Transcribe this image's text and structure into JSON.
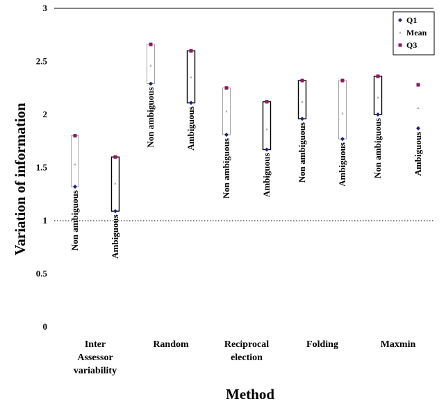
{
  "chart_data": {
    "type": "box",
    "xlabel": "Method",
    "ylabel": "Variation of information",
    "ylim": [
      0,
      3
    ],
    "yticks": [
      "0",
      "0.5",
      "1",
      "1.5",
      "2",
      "2.5",
      "3"
    ],
    "reference_line": 1,
    "groups": [
      {
        "label_lines": [
          "Inter",
          "Assessor",
          "variability"
        ]
      },
      {
        "label_lines": [
          "Random"
        ]
      },
      {
        "label_lines": [
          "Reciprocal",
          "election"
        ]
      },
      {
        "label_lines": [
          "Folding"
        ]
      },
      {
        "label_lines": [
          "Maxmin"
        ]
      }
    ],
    "legend": [
      {
        "name": "Q1",
        "color": "#1f1f7a",
        "marker": "diamond"
      },
      {
        "name": "Mean",
        "color": "#b0a0a0",
        "marker": "triangle"
      },
      {
        "name": "Q3",
        "color": "#8b1a5c",
        "marker": "square"
      }
    ],
    "boxes": [
      {
        "group": 0,
        "label": "Non ambiguous",
        "q1": 1.32,
        "mean": 1.53,
        "q3": 1.8,
        "frame": "light"
      },
      {
        "group": 0,
        "label": "Ambiguous",
        "q1": 1.09,
        "mean": 1.35,
        "q3": 1.6,
        "frame": "dark"
      },
      {
        "group": 1,
        "label": "Non ambiguous",
        "q1": 2.29,
        "mean": 2.46,
        "q3": 2.66,
        "frame": "light"
      },
      {
        "group": 1,
        "label": "Ambiguous",
        "q1": 2.11,
        "mean": 2.35,
        "q3": 2.6,
        "frame": "dark"
      },
      {
        "group": 2,
        "label": "Non ambiguous",
        "q1": 1.81,
        "mean": 2.03,
        "q3": 2.25,
        "frame": "light"
      },
      {
        "group": 2,
        "label": "Ambiguous",
        "q1": 1.67,
        "mean": 1.86,
        "q3": 2.12,
        "frame": "dark"
      },
      {
        "group": 3,
        "label": "Non ambiguous",
        "q1": 1.96,
        "mean": 2.12,
        "q3": 2.32,
        "frame": "dark"
      },
      {
        "group": 3,
        "label": "Ambiguous",
        "q1": 1.77,
        "mean": 2.01,
        "q3": 2.32,
        "frame": "light"
      },
      {
        "group": 4,
        "label": "Non ambiguous",
        "q1": 2.0,
        "mean": 2.16,
        "q3": 2.36,
        "frame": "dark"
      },
      {
        "group": 4,
        "label": "Ambiguous",
        "q1": 1.87,
        "mean": 2.06,
        "q3": 2.28,
        "frame": "none"
      }
    ]
  }
}
